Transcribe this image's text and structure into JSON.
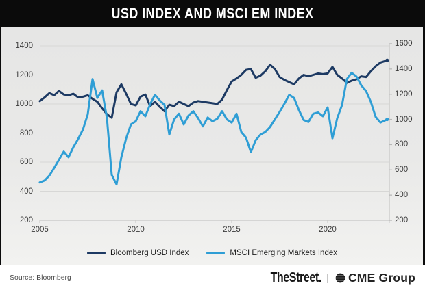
{
  "title": "USD INDEX AND MSCI EM INDEX",
  "chart_data": {
    "type": "line",
    "title": "USD INDEX AND MSCI EM INDEX",
    "grid": true,
    "legend_position": "bottom",
    "x_ticks": [
      2005,
      2010,
      2015,
      2020
    ],
    "left_axis": {
      "range": [
        200,
        1400
      ],
      "ticks": [
        1400,
        1200,
        1000,
        800,
        600,
        400,
        200
      ]
    },
    "right_axis": {
      "range": [
        200,
        1600
      ],
      "ticks": [
        1600,
        1400,
        1200,
        1000,
        800,
        600,
        400,
        200
      ]
    },
    "x": [
      2005,
      2005.25,
      2005.5,
      2005.75,
      2006,
      2006.25,
      2006.5,
      2006.75,
      2007,
      2007.25,
      2007.5,
      2007.75,
      2008,
      2008.25,
      2008.5,
      2008.75,
      2009,
      2009.25,
      2009.5,
      2009.75,
      2010,
      2010.25,
      2010.5,
      2010.75,
      2011,
      2011.25,
      2011.5,
      2011.75,
      2012,
      2012.25,
      2012.5,
      2012.75,
      2013,
      2013.25,
      2013.5,
      2013.75,
      2014,
      2014.25,
      2014.5,
      2014.75,
      2015,
      2015.25,
      2015.5,
      2015.75,
      2016,
      2016.25,
      2016.5,
      2016.75,
      2017,
      2017.25,
      2017.5,
      2017.75,
      2018,
      2018.25,
      2018.5,
      2018.75,
      2019,
      2019.25,
      2019.5,
      2019.75,
      2020,
      2020.25,
      2020.5,
      2020.75,
      2021,
      2021.25,
      2021.5,
      2021.75,
      2022,
      2022.25,
      2022.5,
      2022.75,
      2023.1
    ],
    "series": [
      {
        "name": "Bloomberg USD Index",
        "axis": "left",
        "color": "#1d3a63",
        "values": [
          1020,
          1045,
          1075,
          1060,
          1090,
          1065,
          1060,
          1070,
          1045,
          1050,
          1060,
          1035,
          1015,
          970,
          930,
          905,
          1080,
          1135,
          1070,
          1000,
          990,
          1050,
          1065,
          985,
          1015,
          980,
          950,
          995,
          985,
          1015,
          1000,
          985,
          1010,
          1020,
          1015,
          1010,
          1005,
          1000,
          1030,
          1095,
          1155,
          1175,
          1200,
          1235,
          1240,
          1180,
          1195,
          1225,
          1270,
          1240,
          1185,
          1165,
          1150,
          1135,
          1175,
          1200,
          1190,
          1200,
          1210,
          1205,
          1210,
          1255,
          1200,
          1175,
          1145,
          1160,
          1170,
          1190,
          1185,
          1225,
          1260,
          1285,
          1300
        ]
      },
      {
        "name": "MSCI Emerging Markets Index",
        "axis": "right",
        "color": "#2f9ed5",
        "values": [
          500,
          515,
          555,
          615,
          680,
          745,
          700,
          780,
          845,
          920,
          1040,
          1320,
          1170,
          1230,
          1010,
          560,
          485,
          700,
          850,
          960,
          985,
          1065,
          1025,
          1120,
          1195,
          1150,
          1115,
          880,
          1000,
          1045,
          960,
          1030,
          1065,
          1010,
          945,
          1015,
          985,
          1005,
          1065,
          1000,
          975,
          1045,
          900,
          855,
          740,
          835,
          880,
          900,
          940,
          1000,
          1060,
          1125,
          1195,
          1170,
          1075,
          995,
          980,
          1045,
          1055,
          1025,
          1095,
          850,
          1010,
          1115,
          1320,
          1370,
          1340,
          1270,
          1225,
          1140,
          1020,
          975,
          1000
        ]
      }
    ]
  },
  "footer": {
    "source": "Source: Bloomberg",
    "brand1": "TheStreet.",
    "separator": "|",
    "brand2": "CME Group",
    "brand2_icon": "globe-icon"
  }
}
